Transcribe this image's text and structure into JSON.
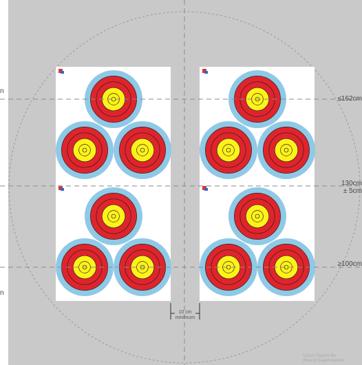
{
  "labels": {
    "top_height": "≤162cm",
    "mid_height_line1": "130cm",
    "mid_height_line2": "± 5cm",
    "bottom_height": "≥100cm",
    "gap_line1": "10 cm",
    "gap_line2": "minimum",
    "caption_line1": "132cm Square  Bu",
    "caption_line2": "(Round Superimposed",
    "left_mark_top": "n",
    "left_mark_bottom": "n"
  },
  "faces": [
    {
      "name": "face-upper-left",
      "targets": 3
    },
    {
      "name": "face-upper-right",
      "targets": 3
    },
    {
      "name": "face-lower-left",
      "targets": 3
    },
    {
      "name": "face-lower-right",
      "targets": 3
    }
  ],
  "colors": {
    "boss": "#c9c9c9",
    "paper": "#ffffff",
    "blue": "#8fc9e6",
    "red": "#e0242c",
    "yellow": "#fff21a",
    "ring_line": "#222222",
    "guide": "#8a8a8a"
  }
}
